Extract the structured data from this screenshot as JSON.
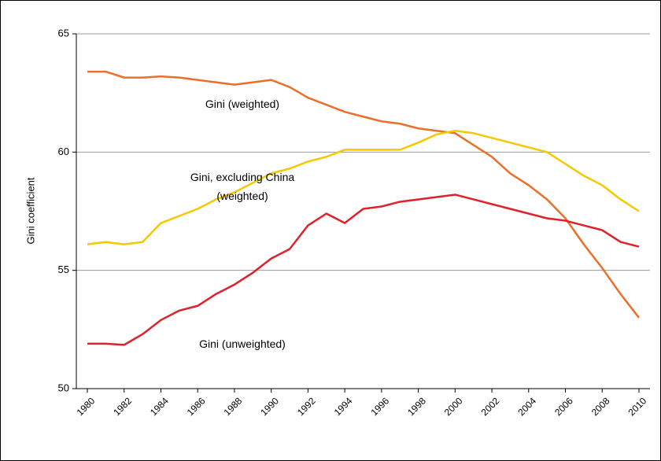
{
  "chart_data": {
    "type": "line",
    "ylabel": "Gini coefficient",
    "x": [
      1980,
      1981,
      1982,
      1983,
      1984,
      1985,
      1986,
      1987,
      1988,
      1989,
      1990,
      1991,
      1992,
      1993,
      1994,
      1995,
      1996,
      1997,
      1998,
      1999,
      2000,
      2001,
      2002,
      2003,
      2004,
      2005,
      2006,
      2007,
      2008,
      2009,
      2010
    ],
    "xlim": [
      1979.4,
      2010.6
    ],
    "xticks": [
      1980,
      1982,
      1984,
      1986,
      1988,
      1990,
      1992,
      1994,
      1996,
      1998,
      2000,
      2002,
      2004,
      2006,
      2008,
      2010
    ],
    "ylim": [
      50,
      65
    ],
    "yticks": [
      50,
      55,
      60,
      65
    ],
    "grid": true,
    "series": [
      {
        "name": "Gini (weighted)",
        "color": "#e8702a",
        "values": [
          63.4,
          63.4,
          63.15,
          63.15,
          63.2,
          63.15,
          63.05,
          62.95,
          62.85,
          62.95,
          63.05,
          62.75,
          62.3,
          62.0,
          61.7,
          61.5,
          61.3,
          61.2,
          61.0,
          60.9,
          60.8,
          60.3,
          59.8,
          59.1,
          58.6,
          58.0,
          57.2,
          56.1,
          55.1,
          54.0,
          53.0
        ]
      },
      {
        "name": "Gini, excluding China (weighted)",
        "color": "#f5c800",
        "values": [
          56.1,
          56.2,
          56.1,
          56.2,
          57.0,
          57.3,
          57.6,
          58.0,
          58.3,
          58.7,
          59.1,
          59.3,
          59.6,
          59.8,
          60.1,
          60.1,
          60.1,
          60.1,
          60.4,
          60.75,
          60.9,
          60.8,
          60.6,
          60.4,
          60.2,
          60.0,
          59.5,
          59.0,
          58.6,
          58.0,
          57.5
        ]
      },
      {
        "name": "Gini (unweighted)",
        "color": "#e0202a",
        "values": [
          51.9,
          51.9,
          51.85,
          52.3,
          52.9,
          53.3,
          53.5,
          54.0,
          54.4,
          54.9,
          55.5,
          55.9,
          56.9,
          57.4,
          57.0,
          57.6,
          57.7,
          57.9,
          58.0,
          58.1,
          58.2,
          58.0,
          57.8,
          57.6,
          57.4,
          57.2,
          57.1,
          56.9,
          56.7,
          56.2,
          56.0
        ]
      }
    ]
  }
}
